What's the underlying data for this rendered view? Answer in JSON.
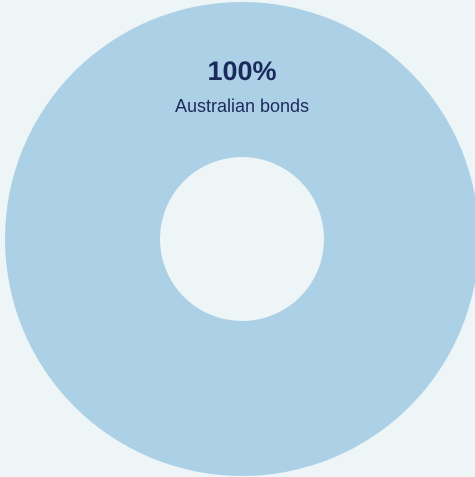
{
  "chart_data": {
    "type": "donut",
    "categories": [
      "Australian bonds"
    ],
    "values": [
      100
    ],
    "value_labels": [
      "100%"
    ],
    "colors": [
      "#acd0e6"
    ]
  }
}
